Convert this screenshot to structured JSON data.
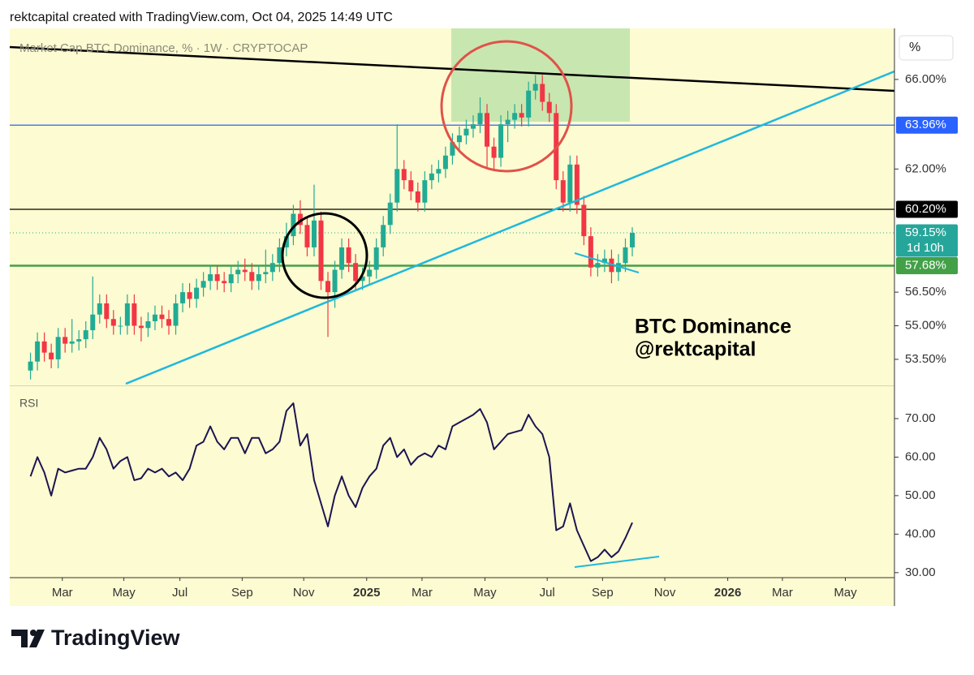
{
  "header": "rektcapital created with TradingView.com, Oct 04, 2025 14:49 UTC",
  "brand": "TradingView",
  "chart_data": [
    {
      "type": "candlestick",
      "title": "Market Cap BTC Dominance, % · 1W · CRYPTOCAP",
      "axis_unit": "%",
      "up_color": "#22ab94",
      "down_color": "#f23645",
      "xlim": [
        0,
        127.9
      ],
      "ylim": [
        52.41,
        68.28
      ],
      "yticks": [
        {
          "value": 66,
          "label": "66.00%"
        },
        {
          "value": 62,
          "label": "62.00%"
        },
        {
          "value": 56.5,
          "label": "56.50%"
        },
        {
          "value": 55,
          "label": "55.00%"
        },
        {
          "value": 53.5,
          "label": "53.50%"
        }
      ],
      "x": [
        3,
        4,
        5,
        6,
        7,
        8,
        9,
        10,
        11,
        12,
        13,
        14,
        15,
        16,
        17,
        18,
        19,
        20,
        21,
        22,
        23,
        24,
        25,
        26,
        27,
        28,
        29,
        30,
        31,
        32,
        33,
        34,
        35,
        36,
        37,
        38,
        39,
        40,
        41,
        42,
        43,
        44,
        45,
        46,
        47,
        48,
        49,
        50,
        51,
        52,
        53,
        54,
        55,
        56,
        57,
        58,
        59,
        60,
        61,
        62,
        63,
        64,
        65,
        66,
        67,
        68,
        69,
        70,
        71,
        72,
        73,
        74,
        75,
        76,
        77,
        78,
        79,
        80,
        81,
        82,
        83,
        84,
        85,
        86,
        87,
        88,
        89,
        90
      ],
      "open": [
        53.0,
        53.4,
        54.3,
        53.8,
        53.5,
        54.5,
        54.2,
        54.3,
        54.4,
        54.8,
        55.5,
        56.0,
        55.3,
        55.0,
        55.0,
        56.0,
        55.0,
        54.9,
        55.2,
        55.5,
        55.3,
        55.0,
        56.0,
        56.5,
        56.2,
        56.7,
        57.0,
        57.3,
        57.0,
        56.9,
        57.3,
        57.5,
        57.4,
        57.0,
        57.3,
        57.4,
        57.8,
        58.5,
        59.0,
        60.0,
        59.5,
        58.5,
        59.7,
        57.0,
        56.5,
        57.5,
        58.5,
        57.8,
        57.0,
        57.2,
        57.5,
        58.5,
        59.5,
        60.5,
        62.0,
        61.5,
        61.0,
        60.5,
        61.5,
        61.8,
        62.0,
        62.6,
        63.2,
        63.5,
        63.8,
        64.0,
        64.5,
        63.0,
        62.5,
        64.0,
        64.2,
        64.5,
        64.3,
        65.5,
        65.8,
        65.0,
        64.5,
        61.5,
        60.5,
        62.2,
        60.4,
        59.0,
        57.6,
        57.8,
        58.0,
        57.4,
        57.8,
        58.5
      ],
      "high": [
        53.8,
        54.7,
        54.7,
        54.2,
        54.9,
        54.9,
        55.3,
        54.8,
        55.2,
        57.2,
        56.4,
        56.4,
        55.7,
        55.4,
        56.4,
        56.4,
        55.4,
        55.6,
        55.9,
        55.9,
        55.7,
        56.4,
        56.9,
        56.9,
        57.1,
        57.4,
        57.7,
        57.7,
        57.4,
        57.7,
        57.9,
        58.0,
        57.8,
        57.7,
        58.4,
        58.2,
        58.9,
        59.6,
        60.4,
        60.6,
        59.9,
        61.3,
        60.1,
        57.4,
        57.9,
        58.9,
        58.9,
        58.2,
        57.6,
        57.9,
        58.9,
        59.9,
        60.9,
        64.0,
        62.4,
        61.9,
        61.4,
        61.9,
        62.2,
        62.4,
        63.0,
        63.6,
        63.9,
        64.2,
        64.4,
        65.2,
        64.9,
        63.4,
        64.4,
        64.6,
        64.9,
        64.9,
        65.9,
        66.2,
        66.2,
        65.4,
        64.9,
        61.9,
        62.6,
        62.6,
        60.8,
        59.4,
        58.2,
        58.4,
        58.4,
        58.2,
        58.9,
        59.4
      ],
      "low": [
        52.6,
        53.0,
        53.4,
        53.1,
        53.1,
        53.8,
        53.8,
        53.9,
        54.0,
        54.4,
        55.1,
        54.9,
        54.6,
        54.6,
        54.6,
        54.6,
        54.3,
        54.5,
        54.8,
        54.9,
        54.6,
        54.6,
        55.6,
        55.8,
        55.8,
        56.3,
        56.6,
        56.6,
        56.5,
        56.5,
        56.9,
        57.0,
        56.6,
        56.6,
        56.9,
        57.0,
        57.4,
        58.1,
        58.6,
        59.1,
        58.1,
        58.1,
        56.6,
        54.5,
        55.8,
        57.1,
        57.4,
        56.6,
        56.6,
        56.8,
        57.1,
        58.1,
        59.1,
        60.1,
        61.1,
        60.6,
        60.1,
        60.1,
        61.1,
        61.4,
        61.6,
        62.2,
        62.8,
        63.1,
        63.4,
        63.6,
        62.0,
        61.9,
        62.1,
        63.2,
        63.8,
        63.9,
        63.9,
        65.1,
        64.6,
        64.1,
        61.1,
        60.1,
        60.1,
        60.0,
        58.6,
        57.2,
        57.2,
        57.4,
        56.9,
        57.0,
        57.4,
        58.1
      ],
      "close": [
        53.4,
        54.3,
        53.8,
        53.5,
        54.5,
        54.2,
        54.3,
        54.4,
        54.8,
        55.5,
        56.0,
        55.3,
        55.0,
        55.0,
        56.0,
        55.0,
        54.9,
        55.2,
        55.5,
        55.3,
        55.0,
        56.0,
        56.5,
        56.2,
        56.7,
        57.0,
        57.3,
        57.0,
        56.9,
        57.3,
        57.5,
        57.4,
        57.0,
        57.3,
        57.4,
        57.8,
        58.5,
        59.0,
        60.0,
        59.5,
        58.5,
        59.7,
        57.0,
        56.5,
        57.5,
        58.5,
        57.8,
        57.0,
        57.2,
        57.5,
        58.5,
        59.5,
        60.5,
        62.0,
        61.5,
        61.0,
        60.5,
        61.5,
        61.8,
        62.0,
        62.6,
        63.2,
        63.5,
        63.8,
        64.0,
        64.5,
        63.0,
        62.5,
        64.0,
        64.2,
        64.5,
        64.3,
        65.5,
        65.8,
        65.0,
        64.5,
        61.5,
        60.5,
        62.2,
        60.4,
        59.0,
        57.6,
        57.8,
        58.0,
        57.4,
        57.8,
        58.5,
        59.15
      ],
      "levels": [
        {
          "value": 63.96,
          "label": "63.96%",
          "color": "#2962ff",
          "style": "solid"
        },
        {
          "value": 60.2,
          "label": "60.20%",
          "color": "#000000",
          "style": "solid"
        },
        {
          "value": 59.15,
          "label": "59.15%",
          "sublabel": "1d 10h",
          "color": "#26a69a",
          "style": "dotted"
        },
        {
          "value": 57.68,
          "label": "57.68%",
          "color": "#43a047",
          "style": "thick"
        }
      ],
      "annotation": [
        "BTC Dominance",
        "@rektcapital"
      ]
    },
    {
      "type": "line",
      "title": "RSI",
      "color": "#1c1452",
      "xlim": [
        0,
        127.9
      ],
      "ylim": [
        28.7,
        78
      ],
      "yticks": [
        {
          "value": 70,
          "label": "70.00"
        },
        {
          "value": 60,
          "label": "60.00"
        },
        {
          "value": 50,
          "label": "50.00"
        },
        {
          "value": 40,
          "label": "40.00"
        },
        {
          "value": 30,
          "label": "30.00"
        }
      ],
      "xticks": [
        {
          "value": 7.6,
          "label": "Mar"
        },
        {
          "value": 16.5,
          "label": "May"
        },
        {
          "value": 24.6,
          "label": "Jul"
        },
        {
          "value": 33.6,
          "label": "Sep"
        },
        {
          "value": 42.5,
          "label": "Nov"
        },
        {
          "value": 51.6,
          "label": "2025"
        },
        {
          "value": 59.6,
          "label": "Mar"
        },
        {
          "value": 68.7,
          "label": "May"
        },
        {
          "value": 77.7,
          "label": "Jul"
        },
        {
          "value": 85.7,
          "label": "Sep"
        },
        {
          "value": 94.7,
          "label": "Nov"
        },
        {
          "value": 103.8,
          "label": "2026"
        },
        {
          "value": 111.7,
          "label": "Mar"
        },
        {
          "value": 120.8,
          "label": "May"
        }
      ],
      "x": [
        3,
        4,
        5,
        6,
        7,
        8,
        9,
        10,
        11,
        12,
        13,
        14,
        15,
        16,
        17,
        18,
        19,
        20,
        21,
        22,
        23,
        24,
        25,
        26,
        27,
        28,
        29,
        30,
        31,
        32,
        33,
        34,
        35,
        36,
        37,
        38,
        39,
        40,
        41,
        42,
        43,
        44,
        45,
        46,
        47,
        48,
        49,
        50,
        51,
        52,
        53,
        54,
        55,
        56,
        57,
        58,
        59,
        60,
        61,
        62,
        63,
        64,
        65,
        66,
        67,
        68,
        69,
        70,
        71,
        72,
        73,
        74,
        75,
        76,
        77,
        78,
        79,
        80,
        81,
        82,
        83,
        84,
        85,
        86,
        87,
        88,
        89,
        90
      ],
      "values": [
        55,
        60,
        56,
        50,
        57,
        56,
        56.5,
        57,
        57,
        60,
        65,
        62,
        57,
        59,
        60,
        54,
        54.5,
        57,
        56,
        57,
        55,
        56,
        54,
        57,
        63,
        64,
        68,
        64,
        62,
        65,
        65,
        61,
        65,
        65,
        61,
        62,
        64,
        72,
        74,
        63,
        66,
        54,
        48,
        42,
        50,
        55,
        50,
        47,
        52,
        55,
        57,
        63,
        65,
        60,
        62,
        58,
        60,
        61,
        60,
        63,
        62,
        68,
        69,
        70,
        71,
        72.5,
        69,
        62,
        64,
        66,
        66.5,
        67,
        71,
        68,
        66,
        60,
        41,
        42,
        48,
        41,
        37,
        33,
        34,
        36,
        34,
        35.5,
        39,
        43
      ]
    }
  ]
}
